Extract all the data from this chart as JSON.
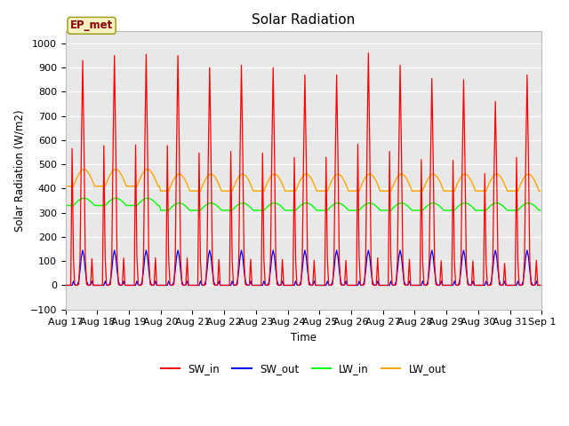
{
  "title": "Solar Radiation",
  "ylabel": "Solar Radiation (W/m2)",
  "xlabel": "Time",
  "ylim": [
    -100,
    1050
  ],
  "annotation": "EP_met",
  "legend_entries": [
    "SW_in",
    "SW_out",
    "LW_in",
    "LW_out"
  ],
  "line_colors": [
    "red",
    "blue",
    "lime",
    "orange"
  ],
  "xtick_labels": [
    "Aug 17",
    "Aug 18",
    "Aug 19",
    "Aug 20",
    "Aug 21",
    "Aug 22",
    "Aug 23",
    "Aug 24",
    "Aug 25",
    "Aug 26",
    "Aug 27",
    "Aug 28",
    "Aug 29",
    "Aug 30",
    "Aug 31",
    "Sep 1"
  ],
  "fig_bg_color": "#ffffff",
  "plot_bg_color": "#e8e8e8",
  "grid_color": "#ffffff",
  "n_days": 15,
  "dt_hours": 1.0,
  "sw_in_peaks": [
    930,
    950,
    955,
    950,
    900,
    910,
    900,
    870,
    870,
    960,
    910,
    855,
    850,
    760,
    870
  ]
}
